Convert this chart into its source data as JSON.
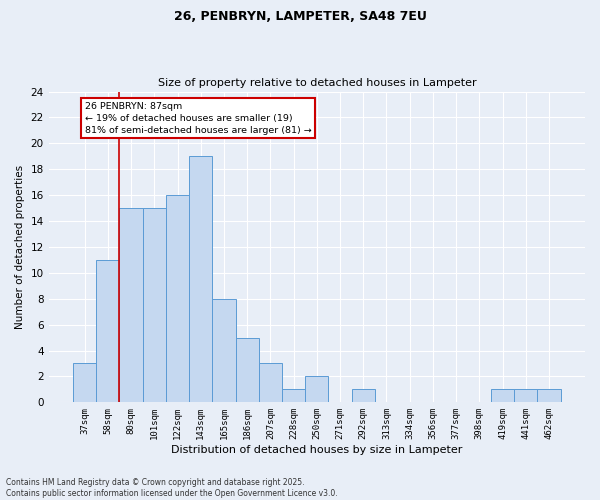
{
  "title1": "26, PENBRYN, LAMPETER, SA48 7EU",
  "title2": "Size of property relative to detached houses in Lampeter",
  "xlabel": "Distribution of detached houses by size in Lampeter",
  "ylabel": "Number of detached properties",
  "bar_labels": [
    "37sqm",
    "58sqm",
    "80sqm",
    "101sqm",
    "122sqm",
    "143sqm",
    "165sqm",
    "186sqm",
    "207sqm",
    "228sqm",
    "250sqm",
    "271sqm",
    "292sqm",
    "313sqm",
    "334sqm",
    "356sqm",
    "377sqm",
    "398sqm",
    "419sqm",
    "441sqm",
    "462sqm"
  ],
  "bar_values": [
    3,
    11,
    15,
    15,
    16,
    19,
    8,
    5,
    3,
    1,
    2,
    0,
    1,
    0,
    0,
    0,
    0,
    0,
    1,
    1,
    1
  ],
  "bar_color": "#c5d8f0",
  "bar_edge_color": "#5b9bd5",
  "background_color": "#e8eef7",
  "grid_color": "#ffffff",
  "ylim": [
    0,
    24
  ],
  "yticks": [
    0,
    2,
    4,
    6,
    8,
    10,
    12,
    14,
    16,
    18,
    20,
    22,
    24
  ],
  "annotation_text": "26 PENBRYN: 87sqm\n← 19% of detached houses are smaller (19)\n81% of semi-detached houses are larger (81) →",
  "annotation_box_color": "#ffffff",
  "annotation_box_edge": "#cc0000",
  "property_line_color": "#cc0000",
  "property_line_x": 1.5,
  "footer": "Contains HM Land Registry data © Crown copyright and database right 2025.\nContains public sector information licensed under the Open Government Licence v3.0."
}
